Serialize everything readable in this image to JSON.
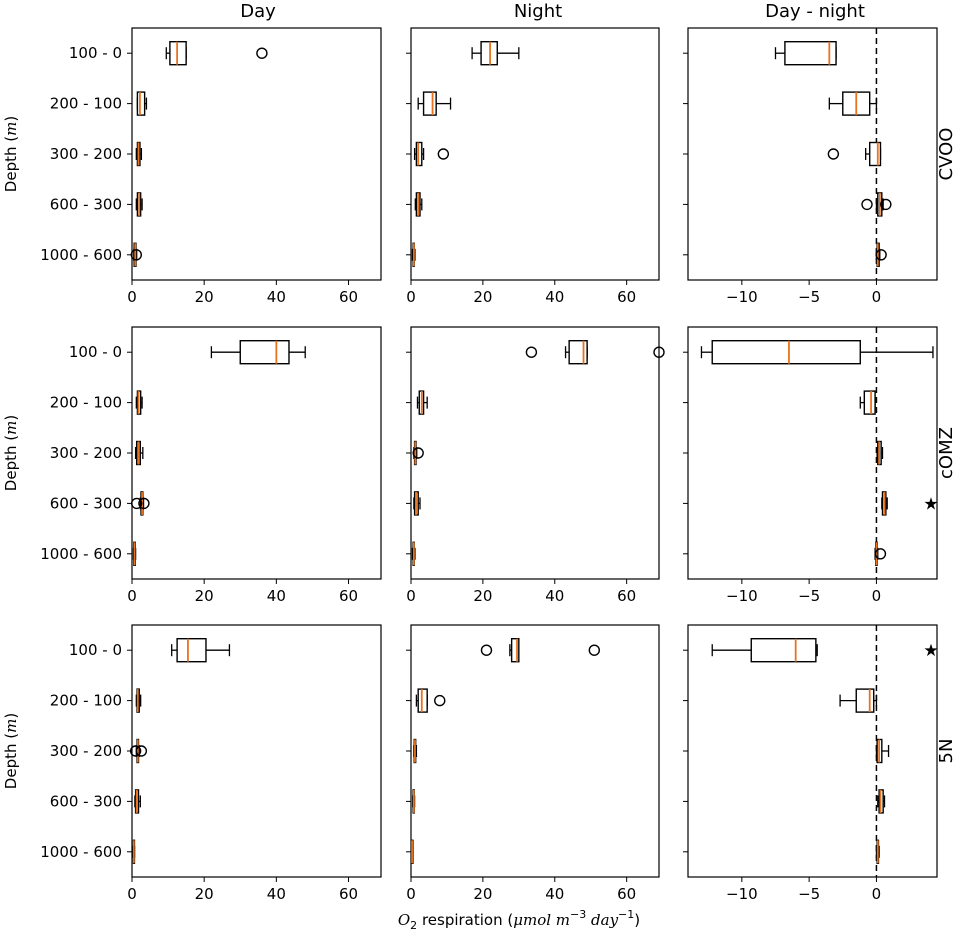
{
  "column_titles": [
    "Day",
    "Night",
    "Day - night"
  ],
  "row_labels": [
    "CVOO",
    "cOMZ",
    "5N"
  ],
  "categories": [
    "100 - 0",
    "200 - 100",
    "300 - 200",
    "600 - 300",
    "1000 - 600"
  ],
  "ylabel": {
    "main": "Depth (",
    "unit": "m",
    "close": ")"
  },
  "xlabel": {
    "symbol": "O",
    "symbol_sub": "2",
    "text": " respiration (",
    "unit_a": "μmol m",
    "exp_a": "−3",
    "unit_b": " day",
    "exp_b": "−1",
    "close": ")"
  },
  "significance_marker": "★",
  "colors": {
    "box": "#000000",
    "median": "#e8731e",
    "zero_line": "#000000"
  },
  "chart_data": {
    "type": "boxplot",
    "orientation": "horizontal",
    "xlim_abs": [
      0,
      69
    ],
    "xticks_abs": [
      "0",
      "20",
      "40",
      "60"
    ],
    "xlim_diff": [
      -14,
      4.5
    ],
    "xticks_diff": [
      "−10",
      "−5",
      "0"
    ],
    "zero_line_diff": true,
    "panels": [
      {
        "row": "CVOO",
        "col": "Day",
        "boxes": [
          {
            "cat": "100 - 0",
            "wl": 9.5,
            "q1": 10.5,
            "med": 12.5,
            "q3": 15,
            "wh": 15,
            "fliers": [
              36
            ]
          },
          {
            "cat": "200 - 100",
            "wl": 1.5,
            "q1": 1.5,
            "med": 2.2,
            "q3": 3.5,
            "wh": 4,
            "fliers": []
          },
          {
            "cat": "300 - 200",
            "wl": 1.2,
            "q1": 1.5,
            "med": 1.8,
            "q3": 2.2,
            "wh": 2.6,
            "fliers": []
          },
          {
            "cat": "600 - 300",
            "wl": 1.2,
            "q1": 1.5,
            "med": 2.0,
            "q3": 2.4,
            "wh": 2.8,
            "fliers": []
          },
          {
            "cat": "1000 - 600",
            "wl": 0.5,
            "q1": 0.6,
            "med": 0.9,
            "q3": 1.1,
            "wh": 1.3,
            "fliers": [
              1.2
            ]
          }
        ]
      },
      {
        "row": "CVOO",
        "col": "Night",
        "boxes": [
          {
            "cat": "100 - 0",
            "wl": 17,
            "q1": 19.5,
            "med": 22,
            "q3": 24,
            "wh": 30,
            "fliers": []
          },
          {
            "cat": "200 - 100",
            "wl": 2,
            "q1": 3.5,
            "med": 6,
            "q3": 7,
            "wh": 11,
            "fliers": []
          },
          {
            "cat": "300 - 200",
            "wl": 1,
            "q1": 1.5,
            "med": 2,
            "q3": 3,
            "wh": 3.5,
            "fliers": [
              9
            ]
          },
          {
            "cat": "600 - 300",
            "wl": 1.2,
            "q1": 1.5,
            "med": 2,
            "q3": 2.5,
            "wh": 3,
            "fliers": []
          },
          {
            "cat": "1000 - 600",
            "wl": 0.4,
            "q1": 0.6,
            "med": 0.8,
            "q3": 0.9,
            "wh": 1.1,
            "fliers": []
          }
        ]
      },
      {
        "row": "CVOO",
        "col": "Day - night",
        "boxes": [
          {
            "cat": "100 - 0",
            "wl": -7.5,
            "q1": -6.8,
            "med": -3.5,
            "q3": -3,
            "wh": -3,
            "fliers": []
          },
          {
            "cat": "200 - 100",
            "wl": -3.5,
            "q1": -2.5,
            "med": -1.5,
            "q3": -0.5,
            "wh": 0,
            "fliers": []
          },
          {
            "cat": "300 - 200",
            "wl": -0.8,
            "q1": -0.5,
            "med": 0.1,
            "q3": 0.3,
            "wh": 0.3,
            "fliers": [
              -3.2
            ]
          },
          {
            "cat": "600 - 300",
            "wl": 0,
            "q1": 0.1,
            "med": 0.25,
            "q3": 0.4,
            "wh": 0.5,
            "fliers": [
              -0.7,
              0.7
            ]
          },
          {
            "cat": "1000 - 600",
            "wl": 0,
            "q1": 0.05,
            "med": 0.1,
            "q3": 0.2,
            "wh": 0.25,
            "fliers": [
              0.35
            ]
          }
        ]
      },
      {
        "row": "cOMZ",
        "col": "Day",
        "boxes": [
          {
            "cat": "100 - 0",
            "wl": 22,
            "q1": 30,
            "med": 40,
            "q3": 43.5,
            "wh": 48,
            "fliers": []
          },
          {
            "cat": "200 - 100",
            "wl": 1.2,
            "q1": 1.5,
            "med": 1.8,
            "q3": 2.4,
            "wh": 2.8,
            "fliers": []
          },
          {
            "cat": "300 - 200",
            "wl": 1,
            "q1": 1.3,
            "med": 1.8,
            "q3": 2.3,
            "wh": 3,
            "fliers": []
          },
          {
            "cat": "600 - 300",
            "wl": 2.3,
            "q1": 2.5,
            "med": 2.8,
            "q3": 3,
            "wh": 3.2,
            "fliers": [
              1.3,
              3.3
            ]
          },
          {
            "cat": "1000 - 600",
            "wl": 0.4,
            "q1": 0.5,
            "med": 0.7,
            "q3": 0.9,
            "wh": 1,
            "fliers": []
          }
        ]
      },
      {
        "row": "cOMZ",
        "col": "Night",
        "boxes": [
          {
            "cat": "100 - 0",
            "wl": 43,
            "q1": 44,
            "med": 48,
            "q3": 49,
            "wh": 49,
            "fliers": [
              33.5,
              69
            ]
          },
          {
            "cat": "200 - 100",
            "wl": 1.8,
            "q1": 2.3,
            "med": 3,
            "q3": 3.5,
            "wh": 4.5,
            "fliers": []
          },
          {
            "cat": "300 - 200",
            "wl": 0.8,
            "q1": 1,
            "med": 1.2,
            "q3": 1.4,
            "wh": 1.6,
            "fliers": [
              2
            ]
          },
          {
            "cat": "600 - 300",
            "wl": 0.8,
            "q1": 1,
            "med": 1.4,
            "q3": 2,
            "wh": 2.5,
            "fliers": []
          },
          {
            "cat": "1000 - 600",
            "wl": 0.4,
            "q1": 0.6,
            "med": 0.8,
            "q3": 0.9,
            "wh": 1.1,
            "fliers": []
          }
        ]
      },
      {
        "row": "cOMZ",
        "col": "Day - night",
        "boxes": [
          {
            "cat": "100 - 0",
            "wl": -13,
            "q1": -12.2,
            "med": -6.5,
            "q3": -1.2,
            "wh": 4.2,
            "fliers": []
          },
          {
            "cat": "200 - 100",
            "wl": -1.2,
            "q1": -0.9,
            "med": -0.4,
            "q3": -0.1,
            "wh": -0.1,
            "fliers": []
          },
          {
            "cat": "300 - 200",
            "wl": 0.05,
            "q1": 0.1,
            "med": 0.2,
            "q3": 0.35,
            "wh": 0.45,
            "fliers": []
          },
          {
            "cat": "600 - 300",
            "wl": 0.4,
            "q1": 0.45,
            "med": 0.6,
            "q3": 0.7,
            "wh": 0.8,
            "fliers": []
          },
          {
            "cat": "1000 - 600",
            "wl": -0.1,
            "q1": -0.05,
            "med": 0,
            "q3": 0.05,
            "wh": 0.1,
            "fliers": [
              0.3
            ]
          }
        ]
      },
      {
        "row": "5N",
        "col": "Day",
        "boxes": [
          {
            "cat": "100 - 0",
            "wl": 11,
            "q1": 12.5,
            "med": 15.5,
            "q3": 20.5,
            "wh": 27,
            "fliers": []
          },
          {
            "cat": "200 - 100",
            "wl": 1.2,
            "q1": 1.4,
            "med": 1.6,
            "q3": 2,
            "wh": 2.4,
            "fliers": []
          },
          {
            "cat": "300 - 200",
            "wl": 1.2,
            "q1": 1.4,
            "med": 1.6,
            "q3": 1.8,
            "wh": 2,
            "fliers": [
              1,
              2.6
            ]
          },
          {
            "cat": "600 - 300",
            "wl": 0.8,
            "q1": 1,
            "med": 1.3,
            "q3": 1.8,
            "wh": 2.3,
            "fliers": []
          },
          {
            "cat": "1000 - 600",
            "wl": 0.3,
            "q1": 0.4,
            "med": 0.5,
            "q3": 0.6,
            "wh": 0.7,
            "fliers": []
          }
        ]
      },
      {
        "row": "5N",
        "col": "Night",
        "boxes": [
          {
            "cat": "100 - 0",
            "wl": 27.5,
            "q1": 28,
            "med": 29.5,
            "q3": 30,
            "wh": 30,
            "fliers": [
              21,
              51
            ]
          },
          {
            "cat": "200 - 100",
            "wl": 1.5,
            "q1": 2,
            "med": 3,
            "q3": 4.5,
            "wh": 4.5,
            "fliers": [
              8
            ]
          },
          {
            "cat": "300 - 200",
            "wl": 0.8,
            "q1": 0.9,
            "med": 1.1,
            "q3": 1.3,
            "wh": 1.5,
            "fliers": []
          },
          {
            "cat": "600 - 300",
            "wl": 0.5,
            "q1": 0.6,
            "med": 0.8,
            "q3": 0.9,
            "wh": 1,
            "fliers": []
          },
          {
            "cat": "1000 - 600",
            "wl": 0.2,
            "q1": 0.25,
            "med": 0.3,
            "q3": 0.35,
            "wh": 0.4,
            "fliers": []
          }
        ]
      },
      {
        "row": "5N",
        "col": "Day - night",
        "boxes": [
          {
            "cat": "100 - 0",
            "wl": -12.2,
            "q1": -9.3,
            "med": -6,
            "q3": -4.5,
            "wh": -4.4,
            "fliers": []
          },
          {
            "cat": "200 - 100",
            "wl": -2.7,
            "q1": -1.5,
            "med": -0.5,
            "q3": -0.2,
            "wh": 0,
            "fliers": []
          },
          {
            "cat": "300 - 200",
            "wl": 0,
            "q1": 0.05,
            "med": 0.2,
            "q3": 0.4,
            "wh": 0.9,
            "fliers": []
          },
          {
            "cat": "600 - 300",
            "wl": 0.1,
            "q1": 0.2,
            "med": 0.3,
            "q3": 0.5,
            "wh": 0.6,
            "fliers": []
          },
          {
            "cat": "1000 - 600",
            "wl": 0,
            "q1": 0.05,
            "med": 0.1,
            "q3": 0.15,
            "wh": 0.2,
            "fliers": []
          }
        ]
      }
    ],
    "significance": [
      {
        "row": "cOMZ",
        "cat": "600 - 300"
      },
      {
        "row": "5N",
        "cat": "100 - 0"
      }
    ]
  }
}
